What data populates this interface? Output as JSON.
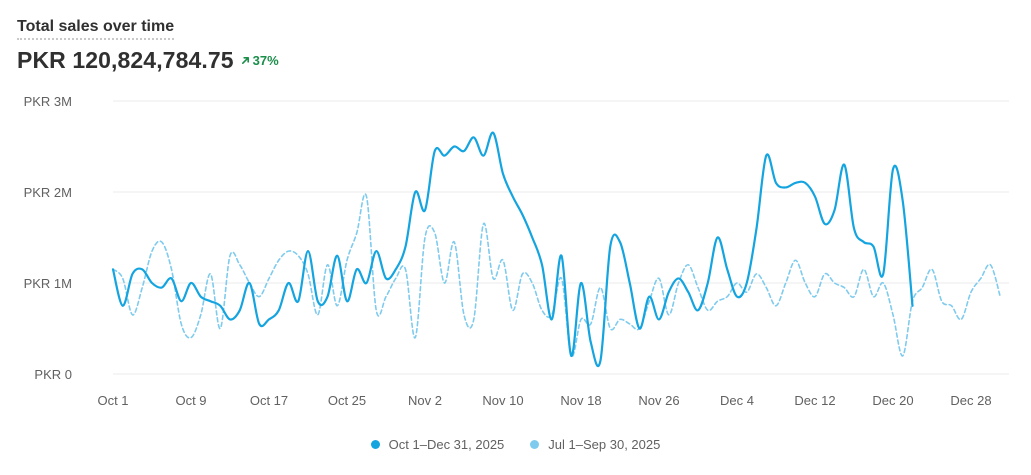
{
  "header": {
    "title": "Total sales over time",
    "total": "PKR 120,824,784.75",
    "change": "37%"
  },
  "colors": {
    "current": "#14a4e0",
    "previous": "#7fcbee",
    "grid": "#ebebeb",
    "positive": "#1b8e4a"
  },
  "legend": {
    "current": "Oct 1–Dec 31, 2025",
    "previous": "Jul 1–Sep 30, 2025"
  },
  "chart_data": {
    "type": "line",
    "title": "Total sales over time",
    "ylim": [
      0,
      3000000
    ],
    "yticks": [
      {
        "value": 0,
        "label": "PKR 0"
      },
      {
        "value": 1000000,
        "label": "PKR 1M"
      },
      {
        "value": 2000000,
        "label": "PKR 2M"
      },
      {
        "value": 3000000,
        "label": "PKR 3M"
      }
    ],
    "xticks": [
      {
        "index": 0,
        "label": "Oct 1"
      },
      {
        "index": 8,
        "label": "Oct 9"
      },
      {
        "index": 16,
        "label": "Oct 17"
      },
      {
        "index": 24,
        "label": "Oct 25"
      },
      {
        "index": 32,
        "label": "Nov 2"
      },
      {
        "index": 40,
        "label": "Nov 10"
      },
      {
        "index": 48,
        "label": "Nov 18"
      },
      {
        "index": 56,
        "label": "Nov 26"
      },
      {
        "index": 64,
        "label": "Dec 4"
      },
      {
        "index": 72,
        "label": "Dec 12"
      },
      {
        "index": 80,
        "label": "Dec 20"
      },
      {
        "index": 88,
        "label": "Dec 28"
      }
    ],
    "grid": true,
    "legend_position": "bottom-center",
    "series": [
      {
        "name": "Oct 1–Dec 31, 2025",
        "style": "solid",
        "values": [
          1150000,
          750000,
          1100000,
          1150000,
          1000000,
          950000,
          1050000,
          800000,
          1000000,
          850000,
          800000,
          750000,
          600000,
          700000,
          1000000,
          550000,
          600000,
          700000,
          1000000,
          800000,
          1350000,
          800000,
          850000,
          1300000,
          800000,
          1150000,
          1000000,
          1350000,
          1050000,
          1150000,
          1400000,
          2000000,
          1800000,
          2450000,
          2400000,
          2500000,
          2450000,
          2600000,
          2400000,
          2650000,
          2200000,
          1950000,
          1750000,
          1500000,
          1200000,
          600000,
          1300000,
          200000,
          1000000,
          350000,
          150000,
          1400000,
          1450000,
          1000000,
          500000,
          850000,
          600000,
          900000,
          1050000,
          900000,
          700000,
          1000000,
          1500000,
          1150000,
          850000,
          1000000,
          1600000,
          2400000,
          2100000,
          2050000,
          2100000,
          2100000,
          1950000,
          1650000,
          1800000,
          2300000,
          1600000,
          1450000,
          1400000,
          1100000,
          2250000,
          1900000,
          750000
        ]
      },
      {
        "name": "Jul 1–Sep 30, 2025",
        "style": "dashed",
        "values": [
          1150000,
          1050000,
          650000,
          950000,
          1350000,
          1450000,
          1150000,
          550000,
          400000,
          650000,
          1100000,
          500000,
          1300000,
          1200000,
          1000000,
          850000,
          1050000,
          1250000,
          1350000,
          1300000,
          1100000,
          650000,
          1200000,
          750000,
          1250000,
          1550000,
          1950000,
          700000,
          850000,
          1050000,
          1150000,
          400000,
          1500000,
          1550000,
          1000000,
          1450000,
          650000,
          600000,
          1650000,
          1050000,
          1250000,
          700000,
          1100000,
          1000000,
          700000,
          650000,
          1050000,
          200000,
          600000,
          550000,
          950000,
          500000,
          600000,
          550000,
          500000,
          800000,
          1050000,
          650000,
          1000000,
          1200000,
          950000,
          700000,
          800000,
          850000,
          1000000,
          900000,
          1100000,
          950000,
          750000,
          1000000,
          1250000,
          1000000,
          850000,
          1100000,
          1000000,
          950000,
          850000,
          1150000,
          850000,
          1000000,
          650000,
          200000,
          800000,
          950000,
          1150000,
          800000,
          750000,
          600000,
          900000,
          1050000,
          1200000,
          850000
        ]
      }
    ]
  }
}
